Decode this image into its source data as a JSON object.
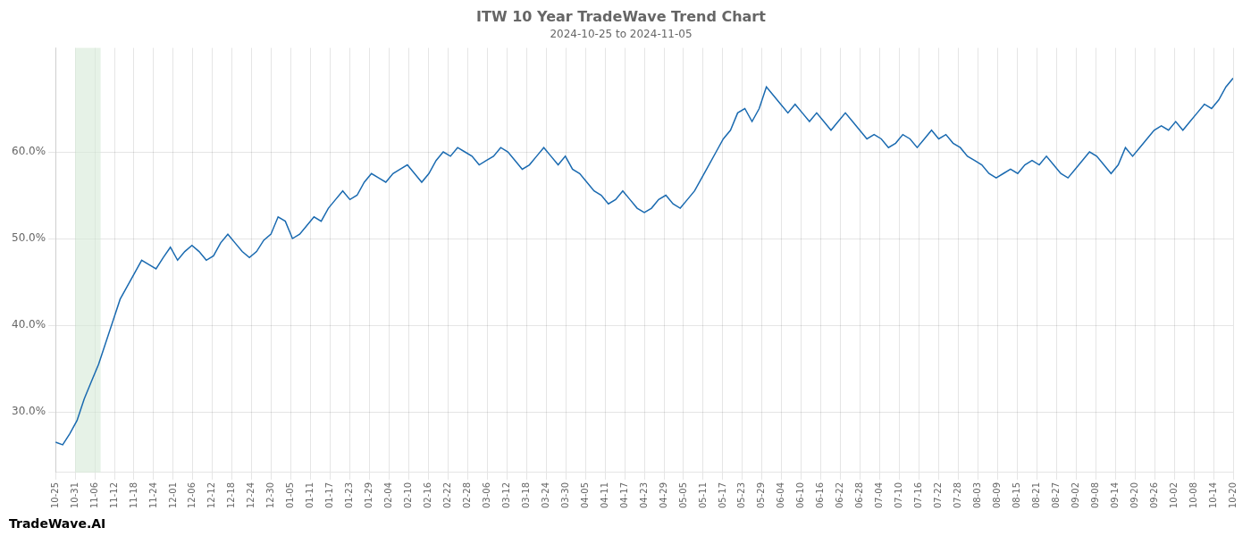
{
  "chart_data": {
    "type": "line",
    "title": "ITW 10 Year TradeWave Trend Chart",
    "subtitle": "2024-10-25 to 2024-11-05",
    "annotations": [
      "TradeWave.AI"
    ],
    "color": "#1a6ab0",
    "grid": true,
    "highlight": {
      "start": 2.7333,
      "end": 6.2867,
      "color": "#d6ead7"
    },
    "xlim": [
      0,
      164
    ],
    "xticks": [
      {
        "value": 0,
        "label": "10-25"
      },
      {
        "value": 2.7333,
        "label": "10-31"
      },
      {
        "value": 5.4667,
        "label": "11-06"
      },
      {
        "value": 8.2,
        "label": "11-12"
      },
      {
        "value": 10.9333,
        "label": "11-18"
      },
      {
        "value": 13.6667,
        "label": "11-24"
      },
      {
        "value": 16.4,
        "label": "12-01"
      },
      {
        "value": 19.1333,
        "label": "12-06"
      },
      {
        "value": 21.8667,
        "label": "12-12"
      },
      {
        "value": 24.6,
        "label": "12-18"
      },
      {
        "value": 27.3333,
        "label": "12-24"
      },
      {
        "value": 30.0667,
        "label": "12-30"
      },
      {
        "value": 32.8,
        "label": "01-05"
      },
      {
        "value": 35.5333,
        "label": "01-11"
      },
      {
        "value": 38.2667,
        "label": "01-17"
      },
      {
        "value": 41,
        "label": "01-23"
      },
      {
        "value": 43.7333,
        "label": "01-29"
      },
      {
        "value": 46.4667,
        "label": "02-04"
      },
      {
        "value": 49.2,
        "label": "02-10"
      },
      {
        "value": 51.9333,
        "label": "02-16"
      },
      {
        "value": 54.6667,
        "label": "02-22"
      },
      {
        "value": 57.4,
        "label": "02-28"
      },
      {
        "value": 60.1333,
        "label": "03-06"
      },
      {
        "value": 62.8667,
        "label": "03-12"
      },
      {
        "value": 65.6,
        "label": "03-18"
      },
      {
        "value": 68.3333,
        "label": "03-24"
      },
      {
        "value": 71.0667,
        "label": "03-30"
      },
      {
        "value": 73.8,
        "label": "04-05"
      },
      {
        "value": 76.5333,
        "label": "04-11"
      },
      {
        "value": 79.2667,
        "label": "04-17"
      },
      {
        "value": 82,
        "label": "04-23"
      },
      {
        "value": 84.7333,
        "label": "04-29"
      },
      {
        "value": 87.4667,
        "label": "05-05"
      },
      {
        "value": 90.2,
        "label": "05-11"
      },
      {
        "value": 92.9333,
        "label": "05-17"
      },
      {
        "value": 95.6667,
        "label": "05-23"
      },
      {
        "value": 98.4,
        "label": "05-29"
      },
      {
        "value": 101.1333,
        "label": "06-04"
      },
      {
        "value": 103.8667,
        "label": "06-10"
      },
      {
        "value": 106.6,
        "label": "06-16"
      },
      {
        "value": 109.3333,
        "label": "06-22"
      },
      {
        "value": 112.0667,
        "label": "06-28"
      },
      {
        "value": 114.8,
        "label": "07-04"
      },
      {
        "value": 117.5333,
        "label": "07-10"
      },
      {
        "value": 120.2667,
        "label": "07-16"
      },
      {
        "value": 123,
        "label": "07-22"
      },
      {
        "value": 125.7333,
        "label": "07-28"
      },
      {
        "value": 128.4667,
        "label": "08-03"
      },
      {
        "value": 131.2,
        "label": "08-09"
      },
      {
        "value": 133.9333,
        "label": "08-15"
      },
      {
        "value": 136.6667,
        "label": "08-21"
      },
      {
        "value": 139.4,
        "label": "08-27"
      },
      {
        "value": 142.1333,
        "label": "09-02"
      },
      {
        "value": 144.8667,
        "label": "09-08"
      },
      {
        "value": 147.6,
        "label": "09-14"
      },
      {
        "value": 150.3333,
        "label": "09-20"
      },
      {
        "value": 153.0667,
        "label": "09-26"
      },
      {
        "value": 155.8,
        "label": "10-02"
      },
      {
        "value": 158.5333,
        "label": "10-08"
      },
      {
        "value": 161.2667,
        "label": "10-14"
      },
      {
        "value": 164,
        "label": "10-20"
      }
    ],
    "ylim": [
      23,
      72
    ],
    "yticks": [
      {
        "value": 30,
        "label": "30.0%"
      },
      {
        "value": 40,
        "label": "40.0%"
      },
      {
        "value": 50,
        "label": "50.0%"
      },
      {
        "value": 60,
        "label": "60.0%"
      }
    ],
    "x": [
      0,
      1,
      2,
      3,
      4,
      5,
      6,
      7,
      8,
      9,
      10,
      11,
      12,
      13,
      14,
      15,
      16,
      17,
      18,
      19,
      20,
      21,
      22,
      23,
      24,
      25,
      26,
      27,
      28,
      29,
      30,
      31,
      32,
      33,
      34,
      35,
      36,
      37,
      38,
      39,
      40,
      41,
      42,
      43,
      44,
      45,
      46,
      47,
      48,
      49,
      50,
      51,
      52,
      53,
      54,
      55,
      56,
      57,
      58,
      59,
      60,
      61,
      62,
      63,
      64,
      65,
      66,
      67,
      68,
      69,
      70,
      71,
      72,
      73,
      74,
      75,
      76,
      77,
      78,
      79,
      80,
      81,
      82,
      83,
      84,
      85,
      86,
      87,
      88,
      89,
      90,
      91,
      92,
      93,
      94,
      95,
      96,
      97,
      98,
      99,
      100,
      101,
      102,
      103,
      104,
      105,
      106,
      107,
      108,
      109,
      110,
      111,
      112,
      113,
      114,
      115,
      116,
      117,
      118,
      119,
      120,
      121,
      122,
      123,
      124,
      125,
      126,
      127,
      128,
      129,
      130,
      131,
      132,
      133,
      134,
      135,
      136,
      137,
      138,
      139,
      140,
      141,
      142,
      143,
      144,
      145,
      146,
      147,
      148,
      149,
      150,
      151,
      152,
      153,
      154,
      155,
      156,
      157,
      158,
      159,
      160,
      161,
      162,
      163,
      164
    ],
    "values": [
      26.5,
      26.2,
      27.5,
      29.0,
      31.5,
      33.5,
      35.5,
      38.0,
      40.5,
      43.0,
      44.5,
      46.0,
      47.5,
      47.0,
      46.5,
      47.8,
      49.0,
      47.5,
      48.5,
      49.2,
      48.5,
      47.5,
      48.0,
      49.5,
      50.5,
      49.5,
      48.5,
      47.8,
      48.5,
      49.8,
      50.5,
      52.5,
      52.0,
      50.0,
      50.5,
      51.5,
      52.5,
      52.0,
      53.5,
      54.5,
      55.5,
      54.5,
      55.0,
      56.5,
      57.5,
      57.0,
      56.5,
      57.5,
      58.0,
      58.5,
      57.5,
      56.5,
      57.5,
      59.0,
      60.0,
      59.5,
      60.5,
      60.0,
      59.5,
      58.5,
      59.0,
      59.5,
      60.5,
      60.0,
      59.0,
      58.0,
      58.5,
      59.5,
      60.5,
      59.5,
      58.5,
      59.5,
      58.0,
      57.5,
      56.5,
      55.5,
      55.0,
      54.0,
      54.5,
      55.5,
      54.5,
      53.5,
      53.0,
      53.5,
      54.5,
      55.0,
      54.0,
      53.5,
      54.5,
      55.5,
      57.0,
      58.5,
      60.0,
      61.5,
      62.5,
      64.5,
      65.0,
      63.5,
      65.0,
      67.5,
      66.5,
      65.5,
      64.5,
      65.5,
      64.5,
      63.5,
      64.5,
      63.5,
      62.5,
      63.5,
      64.5,
      63.5,
      62.5,
      61.5,
      62.0,
      61.5,
      60.5,
      61.0,
      62.0,
      61.5,
      60.5,
      61.5,
      62.5,
      61.5,
      62.0,
      61.0,
      60.5,
      59.5,
      59.0,
      58.5,
      57.5,
      57.0,
      57.5,
      58.0,
      57.5,
      58.5,
      59.0,
      58.5,
      59.5,
      58.5,
      57.5,
      57.0,
      58.0,
      59.0,
      60.0,
      59.5,
      58.5,
      57.5,
      58.5,
      60.5,
      59.5,
      60.5,
      61.5,
      62.5,
      63.0,
      62.5,
      63.5,
      62.5,
      63.5,
      64.5,
      65.5,
      65.0,
      66.0,
      67.5,
      68.5
    ]
  }
}
